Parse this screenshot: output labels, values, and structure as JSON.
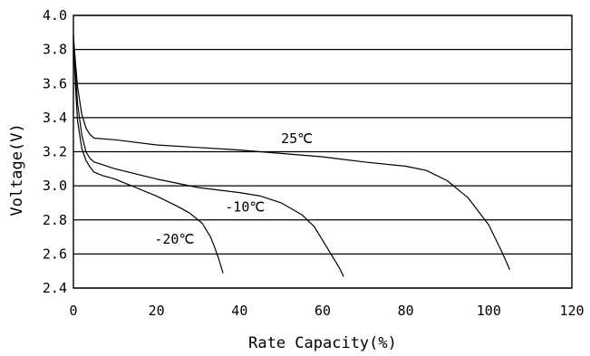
{
  "chart_data": {
    "type": "line",
    "xlabel": "Rate Capacity(%)",
    "ylabel": "Voltage(V)",
    "xlim": [
      0,
      120
    ],
    "ylim": [
      2.4,
      4.0
    ],
    "x_ticks": [
      "0",
      "20",
      "40",
      "60",
      "80",
      "100",
      "120"
    ],
    "y_ticks": [
      "2.4",
      "2.6",
      "2.8",
      "3.0",
      "3.2",
      "3.4",
      "3.6",
      "3.8",
      "4.0"
    ],
    "grid": "horizontal",
    "series": [
      {
        "name": "25℃",
        "x": [
          0,
          0.5,
          1,
          2,
          3,
          4,
          5,
          10,
          20,
          30,
          40,
          50,
          60,
          70,
          80,
          85,
          90,
          95,
          100,
          103,
          105
        ],
        "y": [
          3.88,
          3.72,
          3.58,
          3.42,
          3.34,
          3.3,
          3.28,
          3.27,
          3.24,
          3.225,
          3.21,
          3.19,
          3.17,
          3.14,
          3.115,
          3.09,
          3.03,
          2.93,
          2.77,
          2.62,
          2.51
        ]
      },
      {
        "name": "-10℃",
        "x": [
          0,
          0.5,
          1,
          2,
          3,
          4,
          5,
          10,
          20,
          30,
          40,
          45,
          50,
          55,
          58,
          60,
          62,
          64,
          65
        ],
        "y": [
          3.88,
          3.66,
          3.48,
          3.3,
          3.2,
          3.16,
          3.14,
          3.1,
          3.04,
          2.99,
          2.96,
          2.94,
          2.9,
          2.83,
          2.76,
          2.68,
          2.6,
          2.52,
          2.47
        ]
      },
      {
        "name": "-20℃",
        "x": [
          0,
          0.5,
          1,
          2,
          3,
          4,
          5,
          7,
          10,
          12,
          15,
          20,
          25,
          28,
          31,
          33,
          34,
          35,
          36
        ],
        "y": [
          3.88,
          3.58,
          3.38,
          3.22,
          3.15,
          3.11,
          3.08,
          3.06,
          3.04,
          3.02,
          2.99,
          2.94,
          2.88,
          2.84,
          2.78,
          2.7,
          2.64,
          2.57,
          2.49
        ]
      }
    ],
    "series_label_anchor": [
      {
        "x": 50,
        "y": 3.25
      },
      {
        "x": 36.5,
        "y": 2.85
      },
      {
        "x": 19.5,
        "y": 2.66
      }
    ]
  }
}
